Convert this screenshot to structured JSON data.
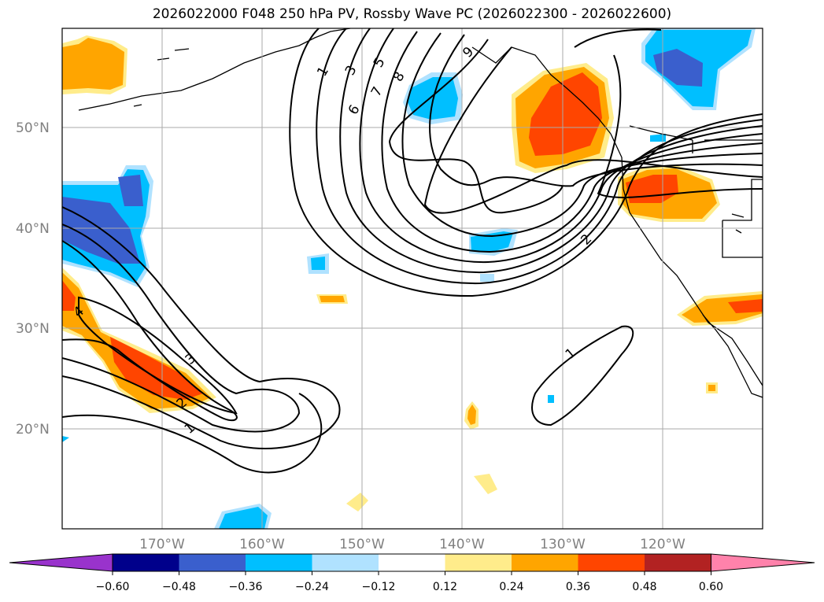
{
  "title": "2026022000 F048 250 hPa PV, Rossby Wave PC (2026022300 - 2026022600)",
  "lat_labels": [
    "50°N",
    "40°N",
    "30°N",
    "20°N"
  ],
  "lon_labels": [
    "170°W",
    "160°W",
    "150°W",
    "140°W",
    "130°W",
    "120°W"
  ],
  "colorbar": {
    "colors": [
      "#9933cc",
      "#00008b",
      "#3a5fcd",
      "#00bfff",
      "#b0e2ff",
      "#ffffff",
      "#ffec8b",
      "#ffa500",
      "#ff4500",
      "#b22222",
      "#ff82ab"
    ],
    "tick_labels": [
      "−0.60",
      "−0.48",
      "−0.36",
      "−0.24",
      "−0.12",
      "0.12",
      "0.24",
      "0.36",
      "0.48",
      "0.60"
    ]
  },
  "contour_labels": [
    "1",
    "3",
    "5",
    "6",
    "7",
    "8",
    "9",
    "2",
    "4",
    "3",
    "2",
    "1",
    "1"
  ]
}
